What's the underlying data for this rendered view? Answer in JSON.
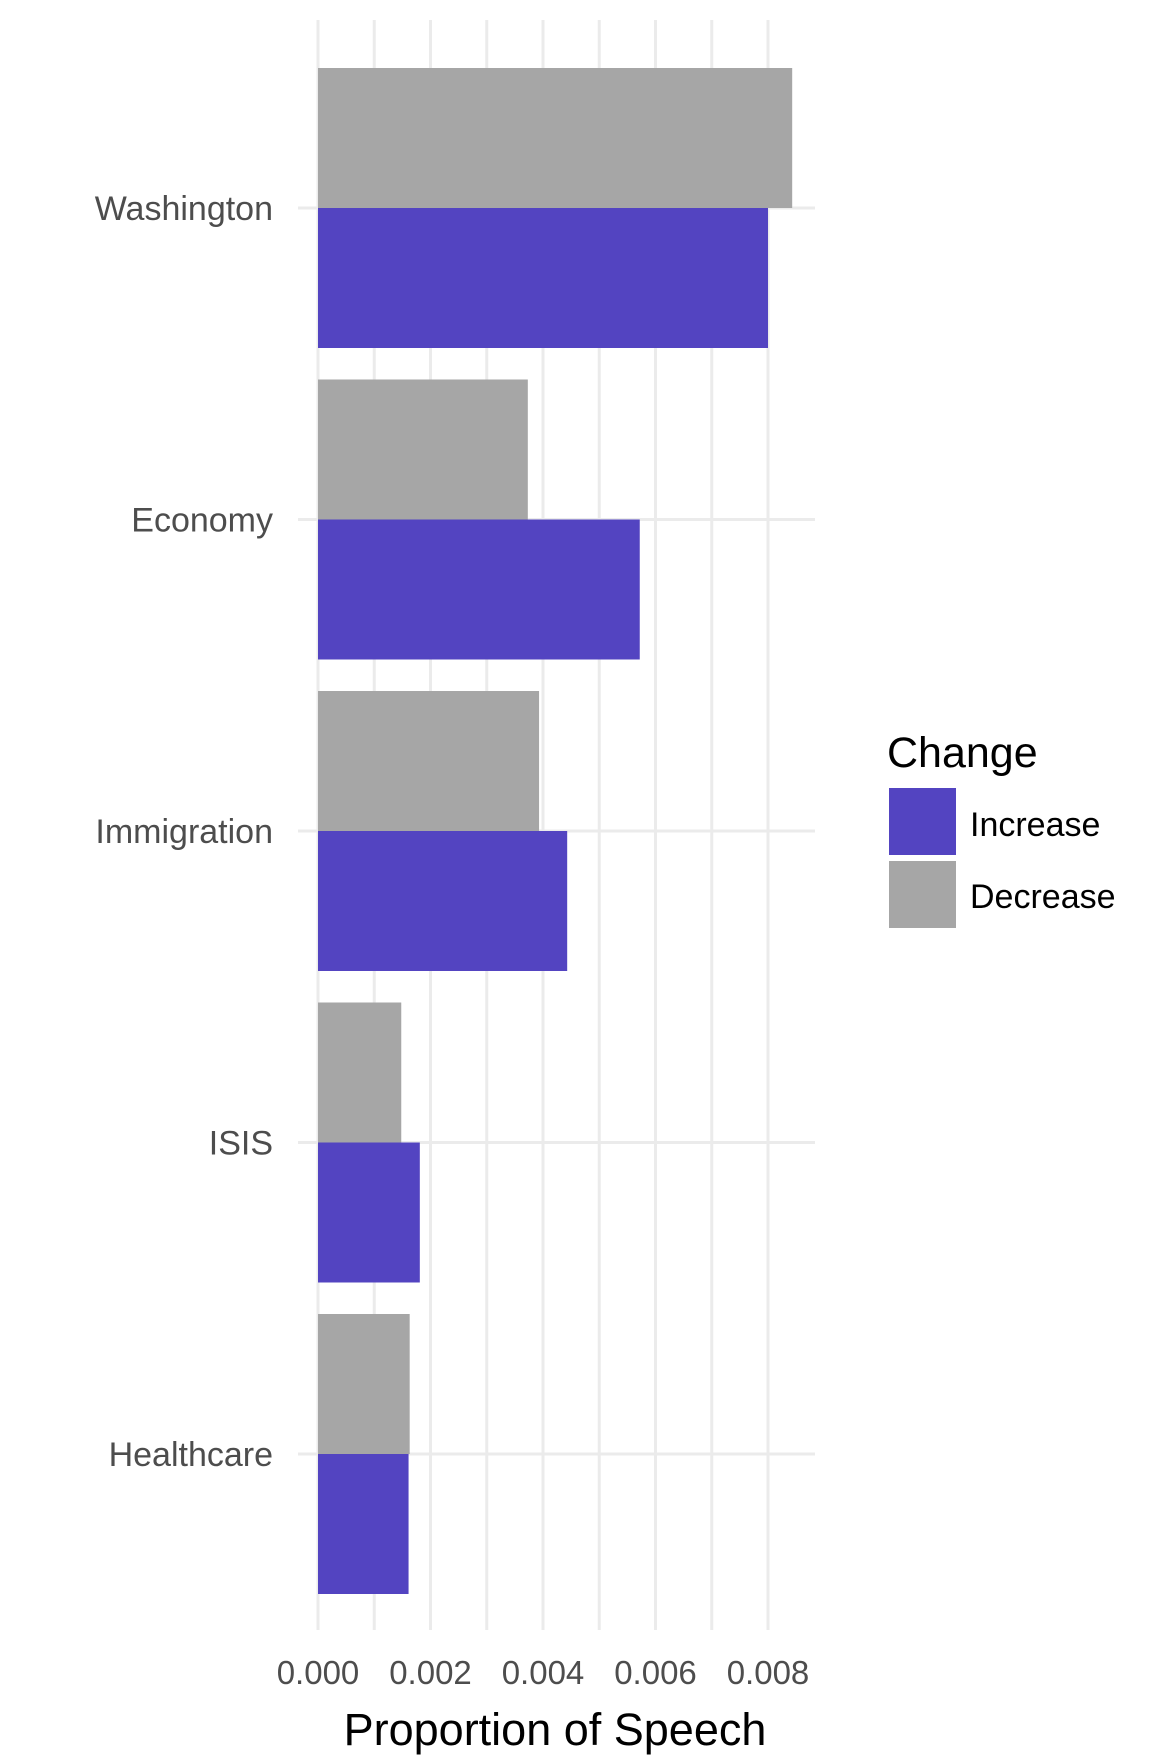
{
  "chart_data": {
    "type": "bar",
    "orientation": "horizontal",
    "title": "",
    "xlabel": "Proportion of Speech",
    "ylabel": "",
    "xlim": [
      0,
      0.0088
    ],
    "x_ticks": [
      0.0,
      0.002,
      0.004,
      0.006,
      0.008
    ],
    "x_tick_labels": [
      "0.000",
      "0.002",
      "0.004",
      "0.006",
      "0.008"
    ],
    "grid": true,
    "categories": [
      "Washington",
      "Economy",
      "Immigration",
      "ISIS",
      "Healthcare"
    ],
    "series": [
      {
        "name": "Increase",
        "color": "#5344c1",
        "values": [
          0.008,
          0.00572,
          0.00443,
          0.00181,
          0.00161
        ]
      },
      {
        "name": "Decrease",
        "color": "#a6a6a6",
        "values": [
          0.00843,
          0.00373,
          0.00393,
          0.00148,
          0.00163
        ]
      }
    ],
    "legend": {
      "title": "Change",
      "position": "right",
      "entries": [
        {
          "label": "Increase",
          "color": "#5344c1"
        },
        {
          "label": "Decrease",
          "color": "#a6a6a6"
        }
      ]
    }
  }
}
